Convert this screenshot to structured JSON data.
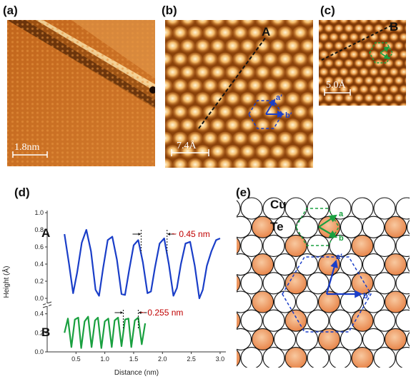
{
  "panels": {
    "a": {
      "label": "(a)",
      "scale_bar": "1.8nm"
    },
    "b": {
      "label": "(b)",
      "scale_bar": "7.4Å",
      "line_label": "A",
      "vec_a": "a′",
      "vec_b": "b′"
    },
    "c": {
      "label": "(c)",
      "scale_bar": "5.0Å",
      "line_label": "B"
    },
    "d": {
      "label": "(d)"
    },
    "e": {
      "label": "(e)",
      "legend_cu": "Cu",
      "legend_te": "Te",
      "vec_a": "a",
      "vec_b": "b",
      "vec_a2": "a′",
      "vec_b2": "b′"
    }
  },
  "colors": {
    "stm_dark": "#7a3a06",
    "stm_mid": "#c46a1e",
    "stm_light": "#f6d48c",
    "te": "#f0a66a",
    "blue": "#1a3ec8",
    "green": "#1aa040",
    "red": "#c00000"
  },
  "chart_data": {
    "type": "line",
    "xlabel": "Distance (nm)",
    "ylabel": "Height (Å)",
    "xticks": [
      "0.5",
      "1.0",
      "1.5",
      "2.0",
      "2.5",
      "3.0"
    ],
    "xlim": [
      0.0,
      3.1
    ],
    "upper": {
      "yticks": [
        "0.0",
        "0.2",
        "0.4",
        "0.6",
        "0.8",
        "1.0"
      ],
      "ylim": [
        0.0,
        1.0
      ],
      "series": [
        {
          "name": "A",
          "color": "#1a3ec8",
          "x": [
            0.3,
            0.38,
            0.45,
            0.52,
            0.6,
            0.68,
            0.76,
            0.84,
            0.9,
            0.97,
            1.05,
            1.13,
            1.21,
            1.29,
            1.35,
            1.42,
            1.5,
            1.58,
            1.66,
            1.74,
            1.8,
            1.87,
            1.95,
            2.03,
            2.11,
            2.19,
            2.25,
            2.32,
            2.4,
            2.48,
            2.56,
            2.64,
            2.7,
            2.77,
            2.85,
            2.93,
            3.0
          ],
          "y": [
            0.75,
            0.4,
            0.06,
            0.3,
            0.65,
            0.8,
            0.55,
            0.1,
            0.03,
            0.35,
            0.68,
            0.72,
            0.45,
            0.05,
            0.04,
            0.32,
            0.62,
            0.68,
            0.42,
            0.06,
            0.08,
            0.36,
            0.64,
            0.7,
            0.4,
            0.03,
            0.12,
            0.4,
            0.64,
            0.66,
            0.38,
            0.0,
            0.1,
            0.38,
            0.55,
            0.68,
            0.7
          ]
        }
      ],
      "annotation": "~ 0.45 nm"
    },
    "lower": {
      "yticks": [
        "0.0",
        "0.2",
        "0.4"
      ],
      "ylim": [
        0.0,
        0.45
      ],
      "series": [
        {
          "name": "B",
          "color": "#1aa040",
          "x": [
            0.3,
            0.36,
            0.42,
            0.48,
            0.54,
            0.59,
            0.65,
            0.71,
            0.77,
            0.83,
            0.88,
            0.94,
            1.0,
            1.06,
            1.12,
            1.17,
            1.23,
            1.29,
            1.35,
            1.41,
            1.46,
            1.52,
            1.58,
            1.64,
            1.7
          ],
          "y": [
            0.2,
            0.35,
            0.05,
            0.34,
            0.36,
            0.04,
            0.32,
            0.37,
            0.05,
            0.33,
            0.36,
            0.04,
            0.32,
            0.35,
            0.05,
            0.33,
            0.36,
            0.06,
            0.34,
            0.35,
            0.05,
            0.33,
            0.36,
            0.08,
            0.3
          ]
        }
      ],
      "annotation": "~ 0.255 nm"
    }
  }
}
